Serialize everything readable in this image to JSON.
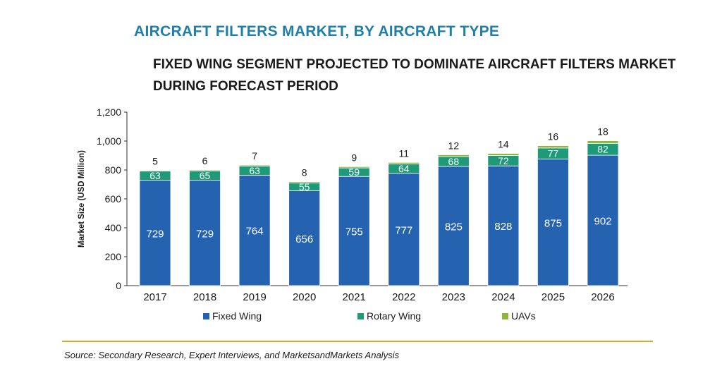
{
  "header": {
    "title": "AIRCRAFT FILTERS MARKET, BY AIRCRAFT TYPE",
    "subtitle_line1": "FIXED WING SEGMENT PROJECTED TO DOMINATE AIRCRAFT FILTERS MARKET",
    "subtitle_line2": "DURING FORECAST PERIOD"
  },
  "chart_data": {
    "type": "bar",
    "stacked": true,
    "categories": [
      "2017",
      "2018",
      "2019",
      "2020",
      "2021",
      "2022",
      "2023",
      "2024",
      "2025",
      "2026"
    ],
    "series": [
      {
        "name": "Fixed Wing",
        "color": "#2563b0",
        "values": [
          729,
          729,
          764,
          656,
          755,
          777,
          825,
          828,
          875,
          902
        ]
      },
      {
        "name": "Rotary Wing",
        "color": "#1e9a78",
        "values": [
          63,
          65,
          63,
          55,
          59,
          64,
          68,
          72,
          77,
          82
        ]
      },
      {
        "name": "UAVs",
        "color": "#8db63a",
        "values": [
          5,
          6,
          7,
          8,
          9,
          11,
          12,
          14,
          16,
          18
        ]
      }
    ],
    "ylabel": "Market Size (USD Million)",
    "xlabel": "",
    "ylim": [
      0,
      1200
    ],
    "yticks": [
      0,
      200,
      400,
      600,
      800,
      1000,
      1200
    ],
    "ytick_labels": [
      "0",
      "200",
      "400",
      "600",
      "800",
      "1,000",
      "1,200"
    ],
    "grid": false,
    "legend_position": "bottom"
  },
  "footer": {
    "source": "Source: Secondary Research, Expert Interviews, and MarketsandMarkets Analysis"
  }
}
